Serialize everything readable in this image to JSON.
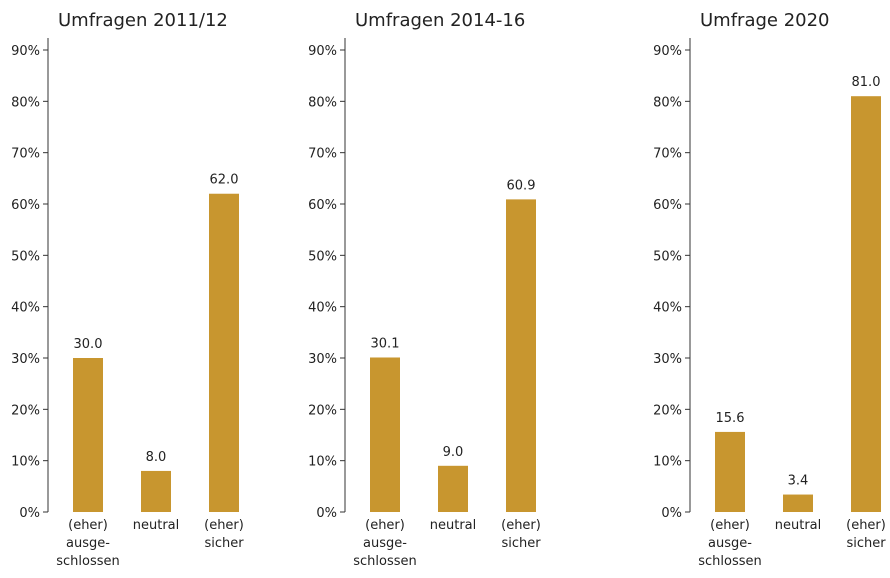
{
  "chart_data": [
    {
      "type": "bar",
      "title": "Umfragen 2011/12",
      "categories": [
        [
          "(eher)",
          "ausge-",
          "schlossen"
        ],
        [
          "neutral"
        ],
        [
          "(eher)",
          "sicher"
        ]
      ],
      "values": [
        30.0,
        8.0,
        62.0
      ],
      "value_labels": [
        "30.0",
        "8.0",
        "62.0"
      ],
      "color": "#c8962f",
      "ylim": [
        0,
        90
      ],
      "yticks": [
        {
          "value": 0,
          "label": "0%"
        },
        {
          "value": 10,
          "label": "10%"
        },
        {
          "value": 20,
          "label": "20%"
        },
        {
          "value": 30,
          "label": "30%"
        },
        {
          "value": 40,
          "label": "40%"
        },
        {
          "value": 50,
          "label": "50%"
        },
        {
          "value": 60,
          "label": "60%"
        },
        {
          "value": 70,
          "label": "70%"
        },
        {
          "value": 80,
          "label": "80%"
        },
        {
          "value": 90,
          "label": "90%"
        }
      ]
    },
    {
      "type": "bar",
      "title": "Umfragen 2014-16",
      "categories": [
        [
          "(eher)",
          "ausge-",
          "schlossen"
        ],
        [
          "neutral"
        ],
        [
          "(eher)",
          "sicher"
        ]
      ],
      "values": [
        30.1,
        9.0,
        60.9
      ],
      "value_labels": [
        "30.1",
        "9.0",
        "60.9"
      ],
      "color": "#c8962f",
      "ylim": [
        0,
        90
      ],
      "yticks": [
        {
          "value": 0,
          "label": "0%"
        },
        {
          "value": 10,
          "label": "10%"
        },
        {
          "value": 20,
          "label": "20%"
        },
        {
          "value": 30,
          "label": "30%"
        },
        {
          "value": 40,
          "label": "40%"
        },
        {
          "value": 50,
          "label": "50%"
        },
        {
          "value": 60,
          "label": "60%"
        },
        {
          "value": 70,
          "label": "70%"
        },
        {
          "value": 80,
          "label": "80%"
        },
        {
          "value": 90,
          "label": "90%"
        }
      ]
    },
    {
      "type": "bar",
      "title": "Umfrage 2020",
      "categories": [
        [
          "(eher)",
          "ausge-",
          "schlossen"
        ],
        [
          "neutral"
        ],
        [
          "(eher)",
          "sicher"
        ]
      ],
      "values": [
        15.6,
        3.4,
        81.0
      ],
      "value_labels": [
        "15.6",
        "3.4",
        "81.0"
      ],
      "color": "#c8962f",
      "ylim": [
        0,
        90
      ],
      "yticks": [
        {
          "value": 0,
          "label": "0%"
        },
        {
          "value": 10,
          "label": "10%"
        },
        {
          "value": 20,
          "label": "20%"
        },
        {
          "value": 30,
          "label": "30%"
        },
        {
          "value": 40,
          "label": "40%"
        },
        {
          "value": 50,
          "label": "50%"
        },
        {
          "value": 60,
          "label": "60%"
        },
        {
          "value": 70,
          "label": "70%"
        },
        {
          "value": 80,
          "label": "80%"
        },
        {
          "value": 90,
          "label": "90%"
        }
      ]
    }
  ]
}
